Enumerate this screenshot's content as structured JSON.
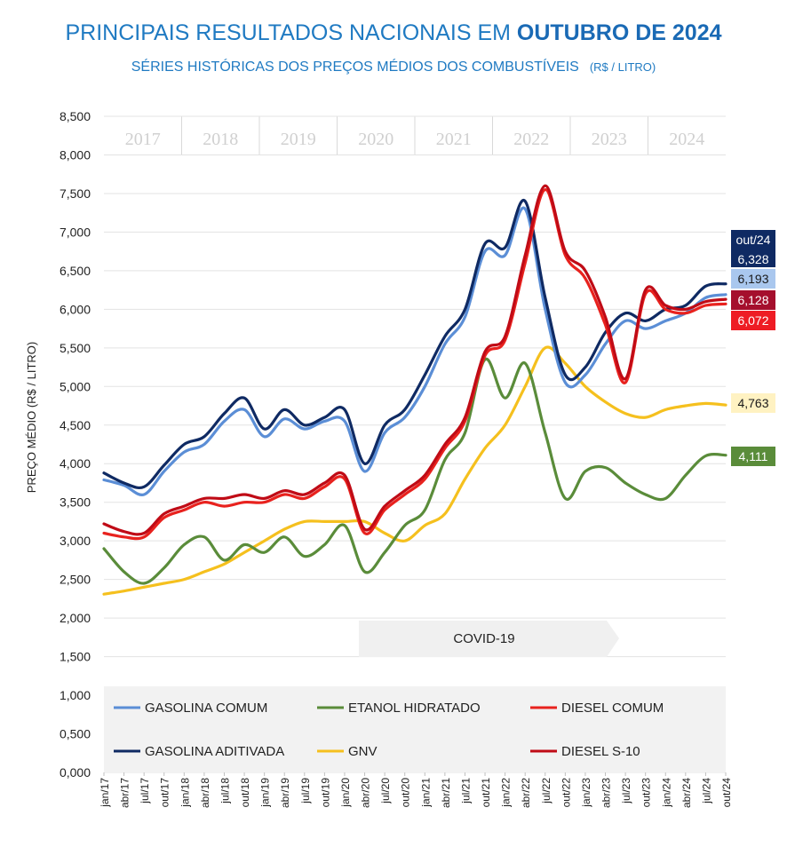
{
  "chart_data": {
    "type": "line",
    "title_prefix": "PRINCIPAIS RESULTADOS NACIONAIS EM ",
    "title_bold": "OUTUBRO DE 2024",
    "subtitle": "SÉRIES HISTÓRICAS DOS PREÇOS MÉDIOS DOS COMBUSTÍVEIS",
    "subtitle_unit": "(R$ / LITRO)",
    "ylabel": "PREÇO MÉDIO (R$ / LITRO)",
    "ylim": [
      0,
      8.5
    ],
    "yticks": [
      "0,000",
      "0,500",
      "1,000",
      "1,500",
      "2,000",
      "2,500",
      "3,000",
      "3,500",
      "4,000",
      "4,500",
      "5,000",
      "5,500",
      "6,000",
      "6,500",
      "7,000",
      "7,500",
      "8,000",
      "8,500"
    ],
    "years": [
      "2017",
      "2018",
      "2019",
      "2020",
      "2021",
      "2022",
      "2023",
      "2024"
    ],
    "xtick_labels": [
      "jan/17",
      "abr/17",
      "jul/17",
      "out/17",
      "jan/18",
      "abr/18",
      "jul/18",
      "out/18",
      "jan/19",
      "abr/19",
      "jul/19",
      "out/19",
      "jan/20",
      "abr/20",
      "jul/20",
      "out/20",
      "jan/21",
      "abr/21",
      "jul/21",
      "out/21",
      "jan/22",
      "abr/22",
      "jul/22",
      "out/22",
      "jan/23",
      "abr/23",
      "jul/23",
      "out/23",
      "jan/24",
      "abr/24",
      "jul/24",
      "out/24"
    ],
    "annotation": "COVID-19",
    "latest_label": "out/24",
    "series": [
      {
        "name": "GASOLINA COMUM",
        "color": "#5b8ed6",
        "end_label": "6,193",
        "label_bg": "#a9c7ee",
        "label_fg": "#1a1a1a",
        "values": [
          3.79,
          3.72,
          3.6,
          3.9,
          4.15,
          4.25,
          4.55,
          4.7,
          4.35,
          4.58,
          4.45,
          4.55,
          4.55,
          3.9,
          4.4,
          4.6,
          5.0,
          5.55,
          5.9,
          6.75,
          6.7,
          7.3,
          6.0,
          5.05,
          5.15,
          5.55,
          5.85,
          5.75,
          5.85,
          5.95,
          6.15,
          6.19
        ]
      },
      {
        "name": "ETANOL HIDRATADO",
        "color": "#5a8c3a",
        "end_label": "4,111",
        "label_bg": "#5a8c3a",
        "label_fg": "#ffffff",
        "values": [
          2.9,
          2.6,
          2.45,
          2.65,
          2.95,
          3.05,
          2.75,
          2.95,
          2.85,
          3.05,
          2.8,
          2.95,
          3.2,
          2.6,
          2.85,
          3.2,
          3.4,
          4.05,
          4.4,
          5.35,
          4.85,
          5.3,
          4.4,
          3.55,
          3.9,
          3.95,
          3.75,
          3.6,
          3.55,
          3.85,
          4.1,
          4.11
        ]
      },
      {
        "name": "DIESEL COMUM",
        "color": "#e8221e",
        "end_label": "6,072",
        "label_bg": "#ee1c24",
        "label_fg": "#ffffff",
        "values": [
          3.1,
          3.05,
          3.05,
          3.3,
          3.4,
          3.5,
          3.45,
          3.5,
          3.5,
          3.6,
          3.55,
          3.7,
          3.8,
          3.1,
          3.4,
          3.6,
          3.8,
          4.2,
          4.55,
          5.4,
          5.6,
          6.6,
          7.55,
          6.7,
          6.4,
          5.8,
          5.05,
          6.2,
          6.0,
          5.95,
          6.05,
          6.07
        ]
      },
      {
        "name": "GASOLINA ADITIVADA",
        "color": "#0f2a63",
        "end_label": "6,328",
        "label_bg": "#0f2a63",
        "label_fg": "#ffffff",
        "values": [
          3.88,
          3.75,
          3.7,
          3.98,
          4.25,
          4.35,
          4.65,
          4.85,
          4.45,
          4.7,
          4.5,
          4.6,
          4.7,
          4.0,
          4.5,
          4.7,
          5.15,
          5.65,
          6.0,
          6.85,
          6.8,
          7.4,
          6.15,
          5.15,
          5.25,
          5.7,
          5.95,
          5.85,
          6.0,
          6.05,
          6.3,
          6.33
        ]
      },
      {
        "name": "GNV",
        "color": "#f5c01e",
        "end_label": "4,763",
        "label_bg": "#fff2c2",
        "label_fg": "#1a1a1a",
        "values": [
          2.31,
          2.35,
          2.4,
          2.45,
          2.5,
          2.6,
          2.7,
          2.85,
          3.0,
          3.15,
          3.25,
          3.25,
          3.25,
          3.25,
          3.1,
          3.0,
          3.2,
          3.35,
          3.8,
          4.2,
          4.5,
          5.0,
          5.5,
          5.3,
          5.0,
          4.8,
          4.65,
          4.6,
          4.7,
          4.75,
          4.78,
          4.76
        ]
      },
      {
        "name": "DIESEL S-10",
        "color": "#c00b16",
        "end_label": "6,128",
        "label_bg": "#a50f2d",
        "label_fg": "#ffffff",
        "values": [
          3.22,
          3.12,
          3.1,
          3.35,
          3.45,
          3.55,
          3.55,
          3.6,
          3.55,
          3.65,
          3.6,
          3.75,
          3.85,
          3.15,
          3.45,
          3.65,
          3.85,
          4.25,
          4.6,
          5.45,
          5.65,
          6.7,
          7.6,
          6.75,
          6.5,
          5.9,
          5.1,
          6.25,
          6.05,
          6.0,
          6.1,
          6.13
        ]
      }
    ],
    "legend_order": [
      0,
      1,
      2,
      3,
      4,
      5
    ],
    "legend_position": "bottom-inside"
  }
}
